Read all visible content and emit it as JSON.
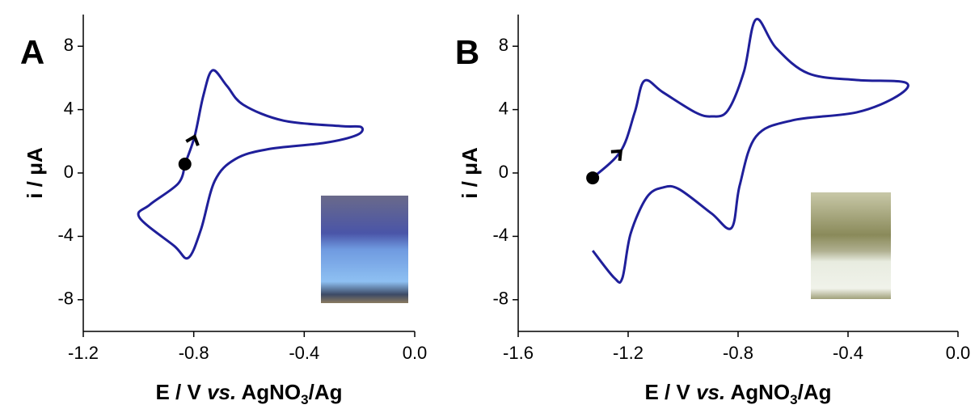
{
  "chart_data": [
    {
      "type": "line",
      "panel_label": "A",
      "ylabel": "i / μA",
      "xlabel": [
        "E / V ",
        "vs.",
        " AgNO",
        "3",
        "/Ag"
      ],
      "color": "#1f1f9a",
      "x": [
        -0.832,
        -0.797,
        -0.765,
        -0.732,
        -0.68,
        -0.62,
        -0.474,
        -0.268,
        -0.194,
        -0.209,
        -0.327,
        -0.532,
        -0.65,
        -0.724,
        -0.774,
        -0.82,
        -0.871,
        -0.997,
        -0.959,
        -0.856,
        -0.832
      ],
      "values": [
        0.56,
        2.3,
        4.9,
        6.48,
        5.5,
        4.3,
        3.3,
        2.96,
        2.9,
        2.4,
        1.9,
        1.5,
        0.87,
        -0.5,
        -3.57,
        -5.36,
        -4.6,
        -2.8,
        -2.0,
        -0.66,
        0.56
      ],
      "xlim": [
        -1.2,
        0.0
      ],
      "ylim": [
        -10,
        10
      ],
      "xticks": [
        -1.2,
        -0.8,
        -0.4,
        {
          "value": 0,
          "label": "0.0"
        }
      ],
      "yticks": [
        8,
        4,
        0,
        -4,
        -8
      ]
    },
    {
      "type": "line",
      "panel_label": "B",
      "ylabel": "i / μA",
      "xlabel": [
        "E / V ",
        "vs.",
        " AgNO",
        "3",
        "/Ag"
      ],
      "color": "#1f1f9a",
      "x": [
        -1.329,
        -1.227,
        -1.176,
        -1.141,
        -1.074,
        -0.956,
        -0.897,
        -0.838,
        -0.779,
        -0.735,
        -0.662,
        -0.544,
        -0.368,
        -0.191,
        -0.221,
        -0.368,
        -0.603,
        -0.735,
        -0.794,
        -0.824,
        -0.897,
        -1.015,
        -1.074,
        -1.132,
        -1.191,
        -1.221,
        -1.25,
        -1.329
      ],
      "values": [
        -0.31,
        1.38,
        3.83,
        5.82,
        5.1,
        3.83,
        3.57,
        3.93,
        6.38,
        9.69,
        7.9,
        6.28,
        5.87,
        5.71,
        4.85,
        3.83,
        3.32,
        2.3,
        -0.77,
        -3.47,
        -2.55,
        -1.02,
        -0.92,
        -1.53,
        -3.83,
        -6.63,
        -6.63,
        -4.9
      ],
      "xlim": [
        -1.6,
        0.0
      ],
      "ylim": [
        -10,
        10
      ],
      "xticks": [
        -1.6,
        -1.2,
        -0.8,
        -0.4,
        {
          "value": 0,
          "label": "0.0"
        }
      ],
      "yticks": [
        8,
        4,
        0,
        -4,
        -8
      ]
    }
  ]
}
